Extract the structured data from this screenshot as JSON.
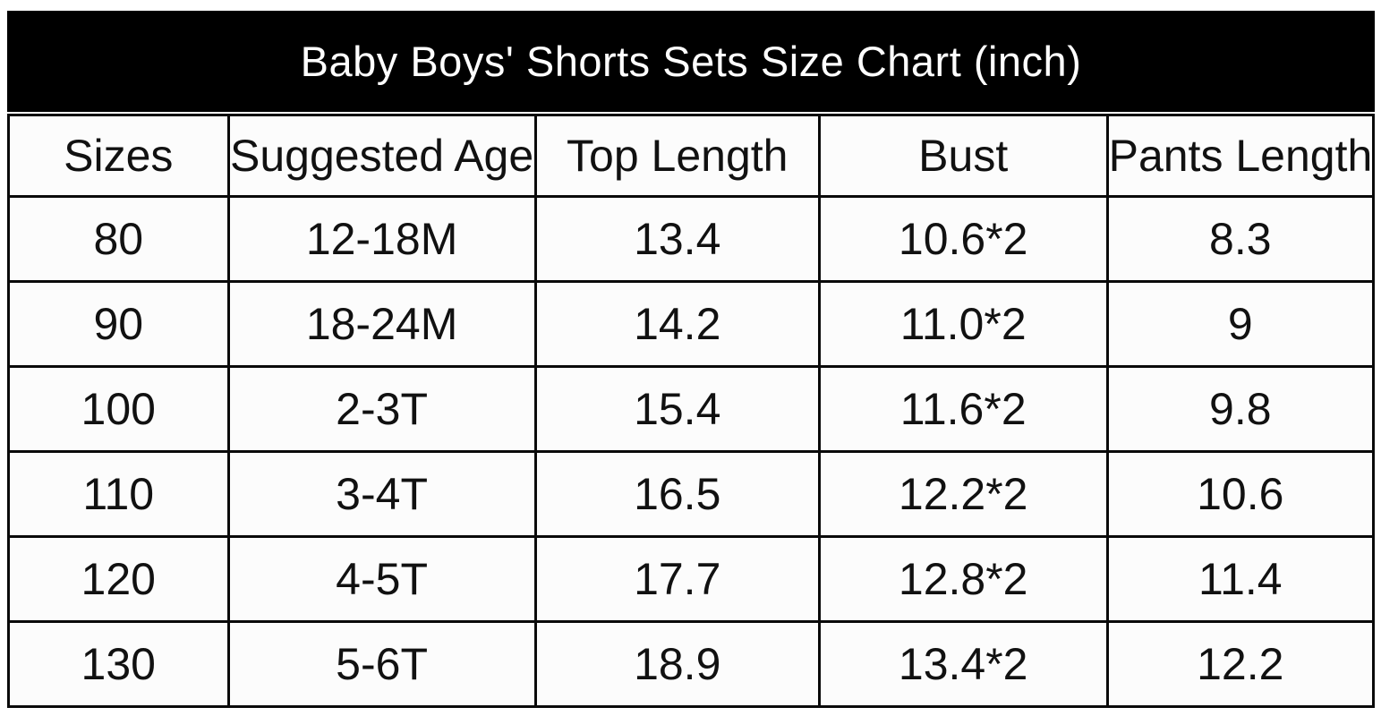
{
  "chart_data": {
    "type": "table",
    "title": "Baby Boys' Shorts Sets Size Chart (inch)",
    "columns": [
      "Sizes",
      "Suggested Age",
      "Top Length",
      "Bust",
      "Pants Length"
    ],
    "rows": [
      [
        "80",
        "12-18M",
        "13.4",
        "10.6*2",
        "8.3"
      ],
      [
        "90",
        "18-24M",
        "14.2",
        "11.0*2",
        "9"
      ],
      [
        "100",
        "2-3T",
        "15.4",
        "11.6*2",
        "9.8"
      ],
      [
        "110",
        "3-4T",
        "16.5",
        "12.2*2",
        "10.6"
      ],
      [
        "120",
        "4-5T",
        "17.7",
        "12.8*2",
        "11.4"
      ],
      [
        "130",
        "5-6T",
        "18.9",
        "13.4*2",
        "12.2"
      ]
    ],
    "units": "inch"
  },
  "colors": {
    "banner_background": "#000000",
    "banner_text": "#ffffff",
    "cell_background": "#fcfcfc",
    "cell_text": "#111111",
    "border": "#0a0a0a",
    "page_background": "#ffffff"
  }
}
